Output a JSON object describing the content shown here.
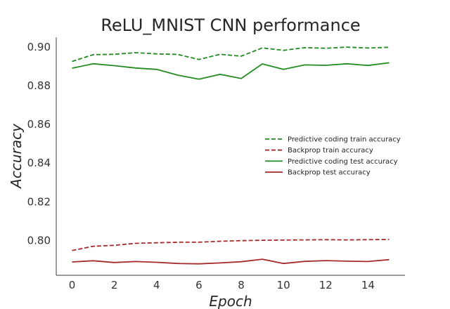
{
  "chart_data": {
    "type": "line",
    "title": "ReLU_MNIST CNN performance",
    "xlabel": "Epoch",
    "ylabel": "Accuracy",
    "xlim": [
      -0.75,
      15.75
    ],
    "ylim": [
      0.782,
      0.905
    ],
    "x_ticks": [
      0,
      2,
      4,
      6,
      8,
      10,
      12,
      14
    ],
    "y_ticks": [
      0.8,
      0.82,
      0.84,
      0.86,
      0.88,
      0.9
    ],
    "x_tick_labels": [
      "0",
      "2",
      "4",
      "6",
      "8",
      "10",
      "12",
      "14"
    ],
    "y_tick_labels": [
      "0.80",
      "0.82",
      "0.84",
      "0.86",
      "0.88",
      "0.90"
    ],
    "grid": false,
    "legend_position": "center-right",
    "x": [
      0,
      1,
      2,
      3,
      4,
      5,
      6,
      7,
      8,
      9,
      10,
      11,
      12,
      13,
      14,
      15
    ],
    "series": [
      {
        "name": "Predictive coding train accuracy",
        "color": "#228b22",
        "style": "dashed",
        "values": [
          0.8925,
          0.896,
          0.8962,
          0.897,
          0.8964,
          0.8961,
          0.8935,
          0.8962,
          0.8952,
          0.8995,
          0.8982,
          0.8996,
          0.8993,
          0.8999,
          0.8994,
          0.8998
        ]
      },
      {
        "name": "Backprop train accuracy",
        "color": "#a52a2a",
        "style": "dashed",
        "values": [
          0.7948,
          0.797,
          0.7975,
          0.7985,
          0.7988,
          0.7991,
          0.7991,
          0.7996,
          0.7999,
          0.8001,
          0.8002,
          0.8003,
          0.8004,
          0.8003,
          0.8004,
          0.8005
        ]
      },
      {
        "name": "Predictive coding test accuracy",
        "color": "#228b22",
        "style": "solid",
        "values": [
          0.889,
          0.8913,
          0.8903,
          0.8891,
          0.8884,
          0.8854,
          0.8833,
          0.8858,
          0.8837,
          0.8912,
          0.8884,
          0.8907,
          0.8905,
          0.8913,
          0.8904,
          0.8918
        ]
      },
      {
        "name": "Backprop test accuracy",
        "color": "#a52a2a",
        "style": "solid",
        "values": [
          0.7889,
          0.7895,
          0.7886,
          0.7891,
          0.7887,
          0.7881,
          0.7879,
          0.7884,
          0.789,
          0.7903,
          0.7881,
          0.7892,
          0.7896,
          0.7893,
          0.7891,
          0.7901
        ]
      }
    ]
  }
}
